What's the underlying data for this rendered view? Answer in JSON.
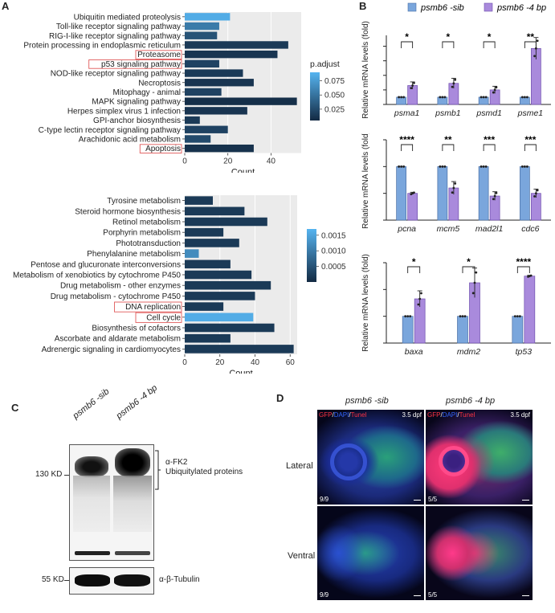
{
  "panel_labels": {
    "a": "A",
    "b": "B",
    "c": "C",
    "d": "D"
  },
  "colors": {
    "kegg_dark": "#132a43",
    "kegg_light": "#56b4f0",
    "sib_bar": "#7aa6dc",
    "mut_bar": "#a98adc",
    "significance": "#000000"
  },
  "panel_a": {
    "colorbar_title": "p.adjust",
    "xlabel": "Count"
  },
  "panel_b": {
    "legend": [
      {
        "label": "psmb6 -sib",
        "color": "#7aa6dc"
      },
      {
        "label": "psmb6 -4 bp",
        "color": "#a98adc"
      }
    ],
    "ylabel": "Relative mRNA levels (fold)"
  },
  "panel_c": {
    "lanes": [
      "psmb6 -sib",
      "psmb6 -4 bp"
    ],
    "marker_top": "130 KD",
    "marker_bottom": "55 KD",
    "antibody_top": "α-FK2",
    "antibody_top_sub": "Ubiquitylated proteins",
    "antibody_bottom": "α-β-Tubulin"
  },
  "panel_d": {
    "col_sib": "psmb6 -sib",
    "col_mut": "psmb6 -4 bp",
    "row_lateral": "Lateral",
    "row_ventral": "Ventral",
    "stain_gfp": "GFP",
    "stain_dapi": "DAPI",
    "stain_tunel": "Tunel",
    "stage": "3.5 dpf",
    "counts": {
      "lateral_sib": "9/9",
      "lateral_mut": "5/5",
      "ventral_sib": "9/9",
      "ventral_mut": "5/5"
    }
  },
  "chart_data": [
    {
      "type": "bar",
      "orientation": "horizontal",
      "id": "a_top",
      "categories": [
        "Ubiquitin mediated proteolysis",
        "Toll-like receptor signaling pathway",
        "RIG-I-like receptor signaling pathway",
        "Protein processing in endoplasmic reticulum",
        "Proteasome",
        "p53 signaling pathway",
        "NOD-like receptor signaling pathway",
        "Necroptosis",
        "Mitophagy - animal",
        "MAPK signaling pathway",
        "Herpes simplex virus 1 infection",
        "GPI-anchor biosynthesis",
        "C-type lectin receptor signaling pathway",
        "Arachidonic acid metabolism",
        "Apoptosis"
      ],
      "highlighted": [
        "Proteasome",
        "p53 signaling pathway",
        "Apoptosis"
      ],
      "values": [
        21,
        16,
        15,
        48,
        43,
        16,
        27,
        32,
        17,
        52,
        29,
        7,
        20,
        12,
        32
      ],
      "color_values": [
        0.085,
        0.055,
        0.03,
        0.015,
        0.012,
        0.02,
        0.015,
        0.012,
        0.02,
        0.008,
        0.012,
        0.015,
        0.02,
        0.025,
        0.01
      ],
      "xlabel": "Count",
      "xlim": [
        0,
        54
      ],
      "xticks": [
        0,
        20,
        40
      ],
      "colorbar": {
        "title": "p.adjust",
        "ticks": [
          0.075,
          0.05,
          0.025
        ],
        "range": [
          0.005,
          0.09
        ]
      }
    },
    {
      "type": "bar",
      "orientation": "horizontal",
      "id": "a_bottom",
      "categories": [
        "Tyrosine metabolism",
        "Steroid hormone biosynthesis",
        "Retinol metabolism",
        "Porphyrin metabolism",
        "Phototransduction",
        "Phenylalanine metabolism",
        "Pentose and glucuronate interconversions",
        "Metabolism of xenobiotics by cytochrome P450",
        "Drug metabolism - other enzymes",
        "Drug metabolism - cytochrome P450",
        "DNA replication",
        "Cell cycle",
        "Biosynthesis of cofactors",
        "Ascorbate and aldarate metabolism",
        "Adrenergic signaling in cardiomyocytes"
      ],
      "highlighted": [
        "DNA replication",
        "Cell cycle"
      ],
      "values": [
        16,
        34,
        47,
        22,
        31,
        8,
        26,
        38,
        49,
        40,
        22,
        39,
        51,
        26,
        62
      ],
      "color_values": [
        0.0002,
        0.0002,
        0.0002,
        0.0002,
        0.0002,
        0.0012,
        0.0002,
        0.0002,
        0.0002,
        0.0002,
        0.0002,
        0.0016,
        0.0002,
        0.0002,
        0.0002
      ],
      "xlabel": "Count",
      "xlim": [
        0,
        64
      ],
      "xticks": [
        0,
        20,
        40,
        60
      ],
      "colorbar": {
        "title": "",
        "ticks": [
          0.0015,
          0.001,
          0.0005
        ],
        "range": [
          0.0,
          0.0017
        ]
      }
    },
    {
      "type": "bar",
      "id": "b1",
      "categories": [
        "psma1",
        "psmb1",
        "psmd1",
        "psme1"
      ],
      "series": [
        {
          "name": "psmb6 -sib",
          "values": [
            1,
            1,
            1,
            1
          ]
        },
        {
          "name": "psmb6 -4 bp",
          "values": [
            2.6,
            2.9,
            2.0,
            7.7
          ]
        }
      ],
      "significance": [
        "*",
        "*",
        "*",
        "**"
      ],
      "ylabel": "Relative mRNA levels (fold)"
    },
    {
      "type": "bar",
      "id": "b2",
      "categories": [
        "pcna",
        "mcm5",
        "mad2l1",
        "cdc6"
      ],
      "series": [
        {
          "name": "psmb6 -sib",
          "values": [
            1,
            1,
            1,
            1
          ]
        },
        {
          "name": "psmb6 -4 bp",
          "values": [
            0.5,
            0.6,
            0.45,
            0.5
          ]
        }
      ],
      "significance": [
        "****",
        "**",
        "***",
        "***"
      ],
      "ylabel": "Relative mRNA levels (fold)"
    },
    {
      "type": "bar",
      "id": "b3",
      "categories": [
        "baxa",
        "mdm2",
        "tp53"
      ],
      "series": [
        {
          "name": "psmb6 -sib",
          "values": [
            1,
            1,
            1
          ]
        },
        {
          "name": "psmb6 -4 bp",
          "values": [
            1.65,
            2.25,
            2.5
          ]
        }
      ],
      "significance": [
        "*",
        "*",
        "****"
      ],
      "ylabel": "Relative mRNA levels (fold)"
    }
  ]
}
